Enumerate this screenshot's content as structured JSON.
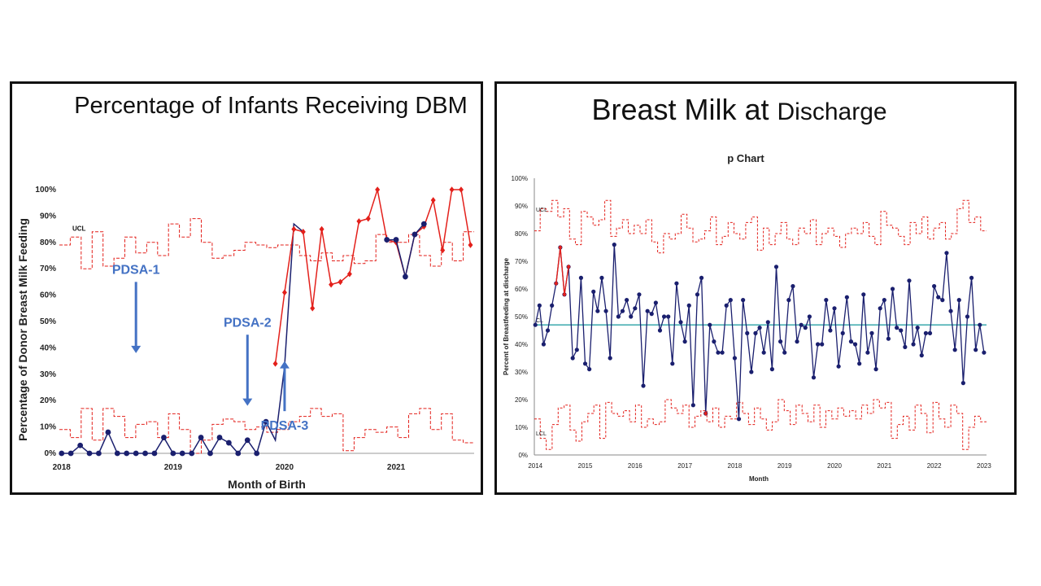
{
  "chart_data": [
    {
      "type": "line",
      "title": "Percentage of Infants Receiving DBM",
      "xlabel": "Month of Birth",
      "ylabel": "Percentage of Donor Breast Milk Feeding",
      "ylim": [
        0,
        100
      ],
      "y_ticks": [
        "0%",
        "10%",
        "20%",
        "30%",
        "40%",
        "50%",
        "60%",
        "70%",
        "80%",
        "90%",
        "100%"
      ],
      "x_ticks": [
        "2018",
        "2019",
        "2020",
        "2021"
      ],
      "ucl_label": "UCL",
      "colors": {
        "phase1": "#1a1f6e",
        "phase2": "#e3201b",
        "limits": "#e3201b",
        "annot": "#4472c4"
      },
      "series": [
        {
          "name": "",
          "x": [
            2018.0,
            2018.083,
            2018.167,
            2018.25,
            2018.333,
            2018.417,
            2018.5,
            2018.583,
            2018.667,
            2018.75,
            2018.833,
            2018.917,
            2019.0,
            2019.083,
            2019.167,
            2019.25,
            2019.333,
            2019.417,
            2019.5,
            2019.583,
            2019.667,
            2019.75,
            2019.833
          ],
          "y": [
            0,
            0,
            3,
            0,
            0,
            8,
            0,
            0,
            0,
            0,
            0,
            6,
            0,
            0,
            0,
            6,
            0,
            6,
            4,
            0,
            5,
            0,
            12
          ]
        },
        {
          "name": "",
          "x": [
            2019.833,
            2019.917,
            2020.0,
            2020.083,
            2020.167
          ],
          "y": [
            12,
            5,
            33,
            87,
            84
          ]
        },
        {
          "name": "",
          "x": [
            2019.917,
            2020.0,
            2020.083,
            2020.167,
            2020.25,
            2020.333,
            2020.417,
            2020.5,
            2020.583,
            2020.667,
            2020.75,
            2020.833,
            2020.917,
            2021.0,
            2021.083,
            2021.167,
            2021.25,
            2021.333,
            2021.417,
            2021.5,
            2021.583,
            2021.667
          ],
          "y": [
            34,
            61,
            85,
            84,
            55,
            85,
            64,
            65,
            68,
            88,
            89,
            100,
            81,
            80,
            67,
            83,
            86,
            96,
            77,
            100,
            100,
            79
          ]
        },
        {
          "name": "",
          "x": [
            2020.917,
            2021.0,
            2021.083,
            2021.167,
            2021.25
          ],
          "y": [
            81,
            81,
            67,
            83,
            87
          ]
        }
      ],
      "ucl": [
        79,
        79,
        82,
        82,
        70,
        70,
        84,
        84,
        71,
        71,
        74,
        74,
        82,
        82,
        76,
        76,
        80,
        80,
        75,
        75,
        87,
        87,
        82,
        82,
        89,
        89,
        80,
        80,
        74,
        74,
        75,
        75,
        77,
        77,
        80,
        80,
        79,
        79,
        78,
        78,
        79,
        79,
        79,
        79,
        75,
        75,
        73,
        73,
        76,
        76,
        73,
        73,
        75,
        75,
        72,
        72,
        73,
        73,
        83,
        83,
        80,
        80,
        80,
        80,
        83,
        83,
        75,
        75,
        71,
        71,
        80,
        80,
        73,
        73,
        84,
        84
      ],
      "lcl": [
        9,
        9,
        6,
        6,
        17,
        17,
        5,
        5,
        17,
        17,
        14,
        14,
        6,
        6,
        11,
        11,
        12,
        12,
        6,
        6,
        15,
        15,
        9,
        9,
        0,
        0,
        5,
        5,
        11,
        11,
        13,
        13,
        12,
        12,
        9,
        9,
        10,
        10,
        8,
        8,
        9,
        9,
        12,
        12,
        14,
        14,
        17,
        17,
        14,
        14,
        15,
        15,
        1,
        1,
        6,
        6,
        9,
        9,
        8,
        8,
        10,
        10,
        6,
        6,
        15,
        15,
        17,
        17,
        9,
        9,
        15,
        15,
        5,
        5,
        4,
        4
      ],
      "annotations": [
        {
          "label": "PDSA-1",
          "x": 2018.667,
          "y": 68,
          "arrow_from": 65,
          "arrow_to": 38,
          "dir": "down"
        },
        {
          "label": "PDSA-2",
          "x": 2019.667,
          "y": 48,
          "arrow_from": 45,
          "arrow_to": 18,
          "dir": "down"
        },
        {
          "label": "PDSA-3",
          "x": 2020.0,
          "y": 9,
          "arrow_from": 16,
          "arrow_to": 35,
          "dir": "up"
        }
      ]
    },
    {
      "type": "line",
      "title": "Breast Milk at Discharge",
      "title_part1": "Breast Milk at",
      "title_part2": "Discharge",
      "subtitle": "p Chart",
      "xlabel": "Month",
      "ylabel": "Percent of Breastfeeding at discharge",
      "ylim": [
        0,
        100
      ],
      "y_ticks": [
        "0%",
        "10%",
        "20%",
        "30%",
        "40%",
        "50%",
        "60%",
        "70%",
        "80%",
        "90%",
        "100%"
      ],
      "x_ticks": [
        "2014",
        "2015",
        "2016",
        "2017",
        "2018",
        "2019",
        "2020",
        "2021",
        "2022",
        "2023"
      ],
      "ucl_label": "UCL",
      "cl_label": "CL",
      "lcl_label": "LCL",
      "center_line": 47,
      "colors": {
        "data": "#1a1f6e",
        "limits": "#e3201b",
        "center": "#2aa0a6",
        "highlight": "#e3201b"
      },
      "series": [
        {
          "name": "",
          "x_start": 2014.0,
          "x_step": 0.08333,
          "y": [
            47,
            54,
            40,
            45,
            54,
            62,
            75,
            58,
            68,
            35,
            38,
            64,
            33,
            31,
            59,
            52,
            64,
            52,
            35,
            76,
            50,
            52,
            56,
            50,
            53,
            58,
            25,
            52,
            51,
            55,
            45,
            50,
            50,
            33,
            62,
            48,
            41,
            54,
            18,
            58,
            64,
            15,
            47,
            41,
            37,
            37,
            54,
            56,
            35,
            13,
            56,
            44,
            30,
            44,
            46,
            37,
            48,
            31,
            68,
            41,
            37,
            56,
            61,
            41,
            47,
            46,
            50,
            28,
            40,
            40,
            56,
            45,
            53,
            32,
            44,
            57,
            41,
            40,
            33,
            58,
            37,
            44,
            31,
            53,
            56,
            42,
            60,
            46,
            45,
            39,
            63,
            40,
            46,
            36,
            44,
            44,
            61,
            57,
            56,
            73,
            52,
            38,
            56,
            26,
            50,
            64,
            38,
            47,
            37
          ]
        },
        {
          "name": "",
          "x_start": 2014.417,
          "x_step": 0.08333,
          "y": [
            62,
            75,
            58,
            68
          ]
        }
      ],
      "highlight_points": [
        {
          "x": 2017.417,
          "y": 15
        }
      ],
      "ucl": [
        81,
        81,
        89,
        89,
        88,
        88,
        92,
        92,
        86,
        86,
        89,
        89,
        78,
        78,
        76,
        76,
        88,
        88,
        86,
        86,
        83,
        83,
        85,
        85,
        92,
        92,
        79,
        79,
        82,
        82,
        85,
        85,
        80,
        80,
        83,
        83,
        80,
        80,
        85,
        85,
        77,
        77,
        73,
        73,
        80,
        80,
        78,
        78,
        80,
        80,
        87,
        87,
        82,
        82,
        77,
        77,
        78,
        78,
        81,
        81,
        86,
        86,
        76,
        76,
        79,
        79,
        84,
        84,
        80,
        80,
        78,
        78,
        84,
        84,
        86,
        86,
        74,
        74,
        82,
        82,
        76,
        76,
        80,
        80,
        84,
        84,
        78,
        78,
        76,
        76,
        82,
        82,
        80,
        80,
        85,
        85,
        76,
        76,
        80,
        80,
        82,
        82,
        79,
        79,
        75,
        75,
        80,
        80,
        82,
        82,
        80,
        80,
        84,
        84,
        79,
        79,
        76,
        76,
        88,
        88,
        83,
        83,
        82,
        82,
        79,
        79,
        76,
        76,
        84,
        84,
        80,
        80,
        86,
        86,
        78,
        78,
        82,
        82,
        84,
        84,
        78,
        78,
        80,
        80,
        89,
        89,
        92,
        92,
        84,
        84,
        86,
        86,
        81,
        81
      ],
      "lcl": [
        13,
        13,
        6,
        6,
        2,
        2,
        11,
        11,
        17,
        17,
        18,
        18,
        9,
        9,
        5,
        5,
        12,
        12,
        15,
        15,
        18,
        18,
        6,
        6,
        19,
        19,
        15,
        15,
        14,
        14,
        16,
        16,
        12,
        12,
        18,
        18,
        10,
        10,
        13,
        13,
        11,
        11,
        12,
        12,
        20,
        20,
        17,
        17,
        15,
        15,
        18,
        18,
        10,
        10,
        14,
        14,
        16,
        16,
        12,
        12,
        17,
        17,
        10,
        10,
        14,
        14,
        13,
        13,
        19,
        19,
        15,
        15,
        11,
        11,
        17,
        17,
        13,
        13,
        9,
        9,
        12,
        12,
        20,
        20,
        16,
        16,
        11,
        11,
        18,
        18,
        15,
        15,
        12,
        12,
        18,
        18,
        10,
        10,
        16,
        16,
        13,
        13,
        17,
        17,
        14,
        14,
        16,
        16,
        13,
        13,
        18,
        18,
        15,
        15,
        20,
        20,
        17,
        17,
        19,
        19,
        6,
        6,
        11,
        11,
        14,
        14,
        9,
        9,
        18,
        18,
        15,
        15,
        8,
        8,
        19,
        19,
        13,
        13,
        10,
        10,
        18,
        18,
        15,
        15,
        2,
        2,
        10,
        10,
        14,
        14,
        12,
        12
      ]
    }
  ]
}
